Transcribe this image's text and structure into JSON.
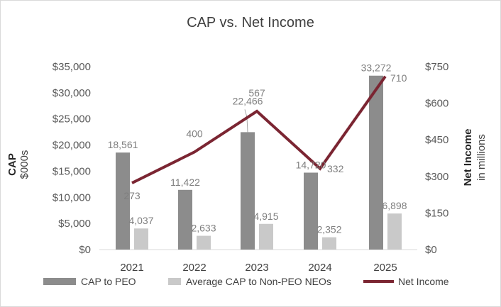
{
  "chart_data": {
    "type": "bar",
    "title": "CAP vs. Net Income",
    "categories": [
      "2021",
      "2022",
      "2023",
      "2024",
      "2025"
    ],
    "series": [
      {
        "name": "CAP to PEO",
        "type": "bar",
        "axis": "left",
        "color": "#8c8c8c",
        "values": [
          18561,
          11422,
          22466,
          14720,
          33272
        ],
        "labels": [
          "18,561",
          "11,422",
          "22,466",
          "14,720",
          "33,272"
        ]
      },
      {
        "name": "Average CAP to Non-PEO NEOs",
        "type": "bar",
        "axis": "left",
        "color": "#c9c9c9",
        "values": [
          4037,
          2633,
          4915,
          2352,
          6898
        ],
        "labels": [
          "4,037",
          "2,633",
          "4,915",
          "2,352",
          "6,898"
        ]
      },
      {
        "name": "Net Income",
        "type": "line",
        "axis": "right",
        "color": "#7b2532",
        "values": [
          273,
          400,
          567,
          332,
          710
        ],
        "labels": [
          "273",
          "400",
          "567",
          "332",
          "710"
        ]
      }
    ],
    "y_left": {
      "title": "CAP",
      "subtitle": "$000s",
      "min": 0,
      "max": 35000,
      "ticks": [
        0,
        5000,
        10000,
        15000,
        20000,
        25000,
        30000,
        35000
      ],
      "tick_labels": [
        "$0",
        "$5,000",
        "$10,000",
        "$15,000",
        "$20,000",
        "$25,000",
        "$30,000",
        "$35,000"
      ]
    },
    "y_right": {
      "title": "Net Income",
      "subtitle": "in millions",
      "min": 0,
      "max": 750,
      "ticks": [
        0,
        150,
        300,
        450,
        600,
        750
      ],
      "tick_labels": [
        "$0",
        "$150",
        "$300",
        "$450",
        "$600",
        "$750"
      ]
    },
    "grid": false,
    "legend": "bottom"
  }
}
